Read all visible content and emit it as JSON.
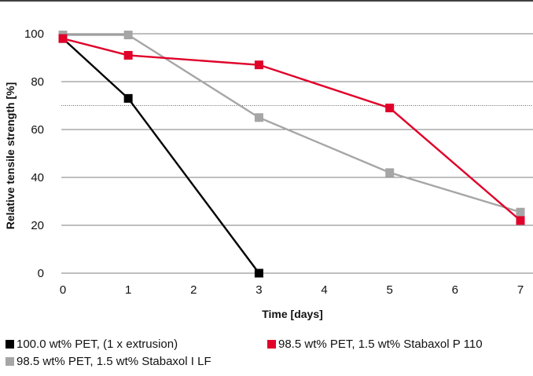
{
  "chart_data": {
    "type": "line",
    "xlabel": "Time [days]",
    "ylabel": "Relative tensile strength [%]",
    "xlim": [
      0,
      7
    ],
    "ylim": [
      0,
      100
    ],
    "x_ticks": [
      "0",
      "1",
      "2",
      "3",
      "4",
      "5",
      "6",
      "7"
    ],
    "y_ticks": [
      "0",
      "20",
      "40",
      "60",
      "80",
      "100"
    ],
    "grid": "horizontal",
    "reference_line_y": 70,
    "legend_position": "bottom",
    "series": [
      {
        "name": "100.0 wt% PET, (1 x extrusion)",
        "color": "#000000",
        "x": [
          0,
          1,
          3
        ],
        "y": [
          98,
          73,
          0
        ]
      },
      {
        "name": "98.5 wt% PET, 1.5 wt% Stabaxol P 110",
        "color": "#e0002a",
        "x": [
          0,
          1,
          3,
          5,
          7
        ],
        "y": [
          98,
          91,
          87,
          69,
          22
        ]
      },
      {
        "name": "98.5 wt% PET, 1.5 wt% Stabaxol I LF",
        "color": "#a6a6a6",
        "x": [
          0,
          1,
          3,
          5,
          7
        ],
        "y": [
          99.5,
          99.5,
          65,
          42,
          25.5
        ]
      }
    ]
  }
}
